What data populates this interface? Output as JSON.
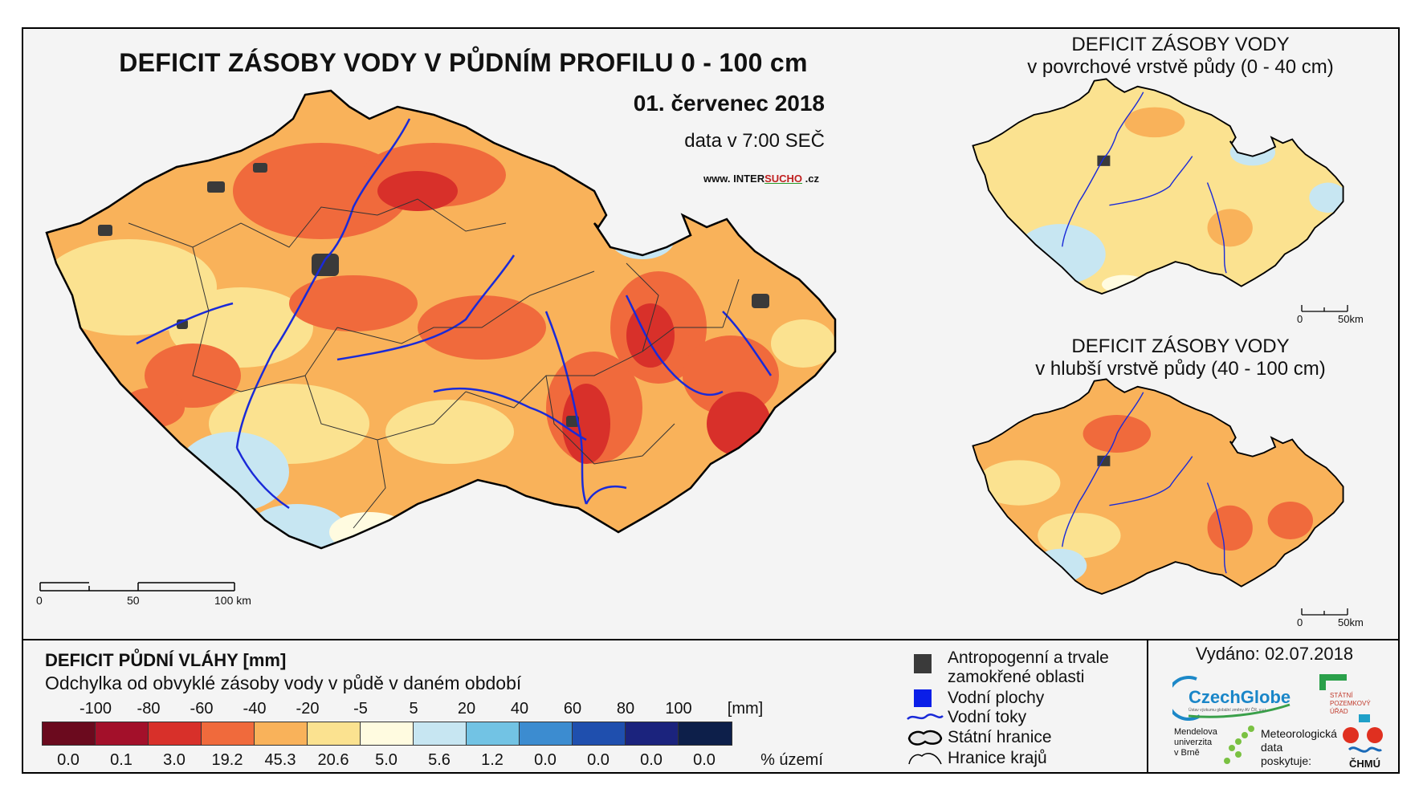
{
  "main_title": "DEFICIT ZÁSOBY VODY V PŮDNÍM PROFILU 0 - 100 cm",
  "date": "01. červenec 2018",
  "time": "data v 7:00 SEČ",
  "website": {
    "prefix": "www. INTER",
    "highlight": "SUCHO",
    "suffix": " .cz"
  },
  "inset_top": {
    "title_line1": "DEFICIT ZÁSOBY VODY",
    "title_line2": "v povrchové vrstvě půdy (0 - 40 cm)"
  },
  "inset_bottom": {
    "title_line1": "DEFICIT ZÁSOBY VODY",
    "title_line2": "v hlubší vrstvě půdy (40 - 100 cm)"
  },
  "main_scalebar": {
    "labels": [
      "0",
      "50",
      "100 km"
    ]
  },
  "inset_scalebar": {
    "labels": [
      "0",
      "50km"
    ]
  },
  "legend": {
    "title": "DEFICIT PŮDNÍ VLÁHY [mm]",
    "subtitle": "Odchylka od obvyklé zásoby vody v půdě v daném období",
    "ticks": [
      "-100",
      "-80",
      "-60",
      "-40",
      "-20",
      "-5",
      "5",
      "20",
      "40",
      "60",
      "80",
      "100"
    ],
    "unit": "[mm]",
    "percent_label": "% území",
    "classes": [
      {
        "color": "#6b0a1e",
        "pct": "0.0"
      },
      {
        "color": "#a3102a",
        "pct": "0.1"
      },
      {
        "color": "#d8302a",
        "pct": "3.0"
      },
      {
        "color": "#f06a3c",
        "pct": "19.2"
      },
      {
        "color": "#f9b25a",
        "pct": "45.3"
      },
      {
        "color": "#fbe290",
        "pct": "20.6"
      },
      {
        "color": "#fffbe0",
        "pct": "5.0"
      },
      {
        "color": "#c7e6f2",
        "pct": "5.6"
      },
      {
        "color": "#72c3e4",
        "pct": "1.2"
      },
      {
        "color": "#3c8cd0",
        "pct": "0.0"
      },
      {
        "color": "#1f4fae",
        "pct": "0.0"
      },
      {
        "color": "#1b237d",
        "pct": "0.0"
      },
      {
        "color": "#0d1f4a",
        "pct": "0.0"
      }
    ]
  },
  "map_legend": {
    "anthropogenic_line1": "Antropogenní a trvale",
    "anthropogenic_line2": "zamokřené oblasti",
    "water_bodies": "Vodní plochy",
    "rivers": "Vodní toky",
    "state_border": "Státní hranice",
    "region_border": "Hranice krajů",
    "colors": {
      "anthropogenic": "#3a3a3a",
      "water": "#0a1ee8",
      "river": "#1a2ad8"
    }
  },
  "issued": "Vydáno: 02.07.2018",
  "logos": {
    "czechglobe": "CzechGlobe",
    "czechglobe_sub": "Ústav výzkumu globální změny AV ČR, v.v.i.",
    "spu_line1": "STÁTNÍ",
    "spu_line2": "POZEMKOVÝ",
    "spu_line3": "ÚŘAD",
    "mendel_line1": "Mendelova",
    "mendel_line2": "univerzita",
    "mendel_line3": "v Brně",
    "meteo_line1": "Meteorologická",
    "meteo_line2": "data",
    "meteo_line3": "poskytuje:",
    "chmu": "ČHMÚ"
  }
}
